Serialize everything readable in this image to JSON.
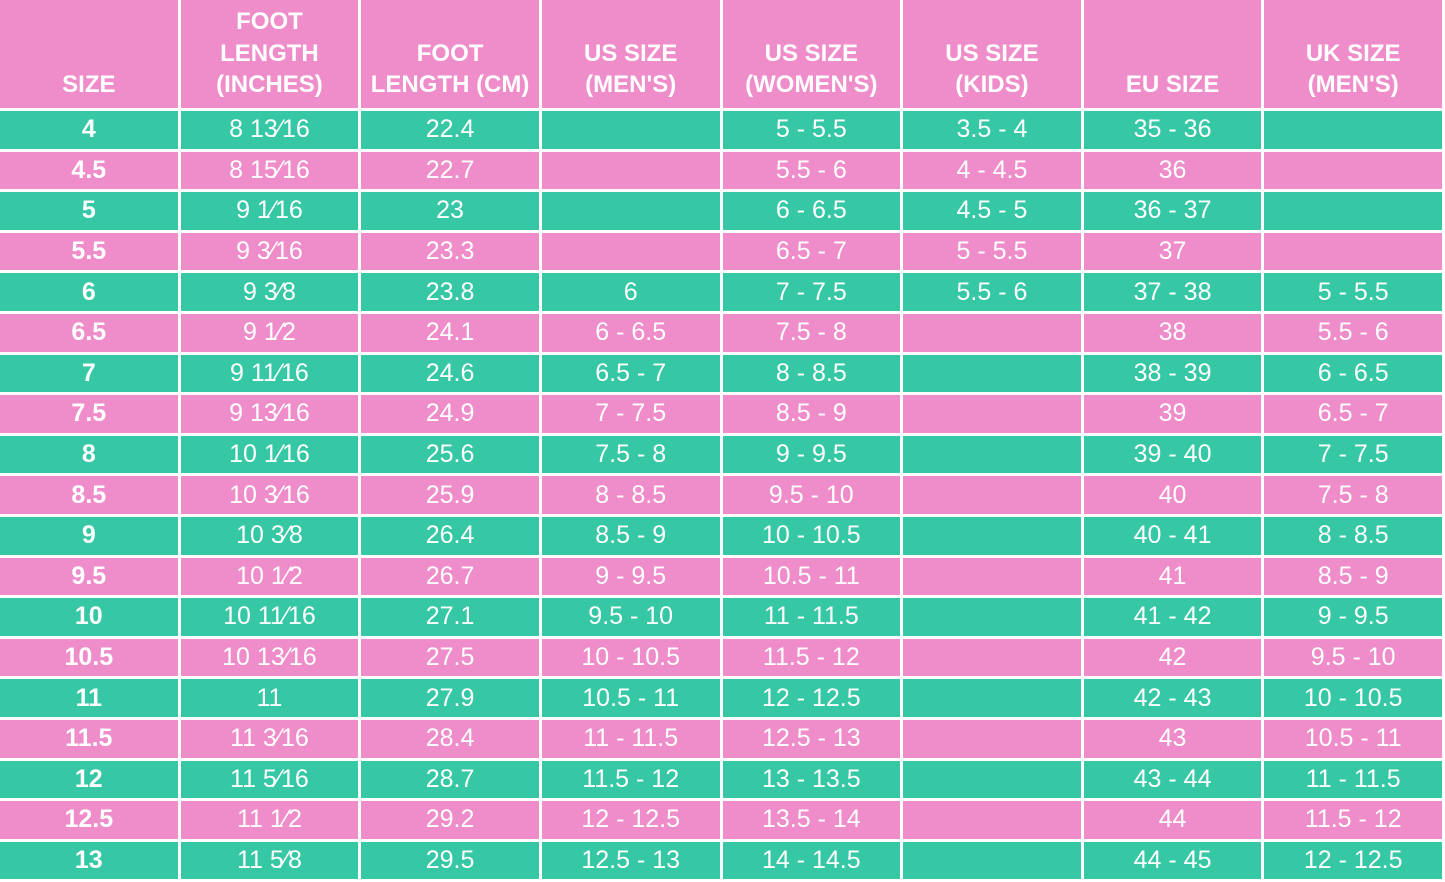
{
  "colors": {
    "teal_row": "#36C7A5",
    "pink_row": "#EE8DC9",
    "header_bg": "#EE8DC9",
    "gridline": "#FFFFFF",
    "page_background": "#F9E4F1",
    "text": "#FFFFFF"
  },
  "chart_data": {
    "type": "table",
    "title": "",
    "columns": [
      {
        "key": "size",
        "label": "SIZE"
      },
      {
        "key": "foot-length-inches",
        "label": "FOOT LENGTH (INCHES)"
      },
      {
        "key": "foot-length-cm",
        "label": "FOOT LENGTH (CM)"
      },
      {
        "key": "us-size-mens",
        "label": "US SIZE (MEN'S)"
      },
      {
        "key": "us-size-womens",
        "label": "US SIZE (WOMEN'S)"
      },
      {
        "key": "us-size-kids",
        "label": "US SIZE (KIDS)"
      },
      {
        "key": "eu-size",
        "label": "EU SIZE"
      },
      {
        "key": "uk-size-mens",
        "label": "UK SIZE (MEN'S)"
      }
    ],
    "rows": [
      [
        "4",
        "8 13⁄16",
        "22.4",
        "",
        "5 - 5.5",
        "3.5 - 4",
        "35 - 36",
        ""
      ],
      [
        "4.5",
        "8 15⁄16",
        "22.7",
        "",
        "5.5 - 6",
        "4 - 4.5",
        "36",
        ""
      ],
      [
        "5",
        "9 1⁄16",
        "23",
        "",
        "6 - 6.5",
        "4.5 - 5",
        "36 - 37",
        ""
      ],
      [
        "5.5",
        "9 3⁄16",
        "23.3",
        "",
        "6.5 - 7",
        "5 - 5.5",
        "37",
        ""
      ],
      [
        "6",
        "9 3⁄8",
        "23.8",
        "6",
        "7 - 7.5",
        "5.5 - 6",
        "37 - 38",
        "5 - 5.5"
      ],
      [
        "6.5",
        "9 1⁄2",
        "24.1",
        "6 - 6.5",
        "7.5 - 8",
        "",
        "38",
        "5.5 - 6"
      ],
      [
        "7",
        "9 11⁄16",
        "24.6",
        "6.5 - 7",
        "8 - 8.5",
        "",
        "38 - 39",
        "6 - 6.5"
      ],
      [
        "7.5",
        "9 13⁄16",
        "24.9",
        "7 - 7.5",
        "8.5 - 9",
        "",
        "39",
        "6.5 - 7"
      ],
      [
        "8",
        "10 1⁄16",
        "25.6",
        "7.5 - 8",
        "9 - 9.5",
        "",
        "39 - 40",
        "7 - 7.5"
      ],
      [
        "8.5",
        "10 3⁄16",
        "25.9",
        "8 - 8.5",
        "9.5 - 10",
        "",
        "40",
        "7.5 - 8"
      ],
      [
        "9",
        "10 3⁄8",
        "26.4",
        "8.5 - 9",
        "10 - 10.5",
        "",
        "40 - 41",
        "8 - 8.5"
      ],
      [
        "9.5",
        "10 1⁄2",
        "26.7",
        "9 - 9.5",
        "10.5 - 11",
        "",
        "41",
        "8.5 - 9"
      ],
      [
        "10",
        "10 11⁄16",
        "27.1",
        "9.5 - 10",
        "11 - 11.5",
        "",
        "41 - 42",
        "9 - 9.5"
      ],
      [
        "10.5",
        "10 13⁄16",
        "27.5",
        "10 - 10.5",
        "11.5 - 12",
        "",
        "42",
        "9.5 - 10"
      ],
      [
        "11",
        "11",
        "27.9",
        "10.5 - 11",
        "12 - 12.5",
        "",
        "42 - 43",
        "10 - 10.5"
      ],
      [
        "11.5",
        "11 3⁄16",
        "28.4",
        "11 - 11.5",
        "12.5 - 13",
        "",
        "43",
        "10.5 - 11"
      ],
      [
        "12",
        "11 5⁄16",
        "28.7",
        "11.5 - 12",
        "13 - 13.5",
        "",
        "43 - 44",
        "11 - 11.5"
      ],
      [
        "12.5",
        "11 1⁄2",
        "29.2",
        "12 - 12.5",
        "13.5 - 14",
        "",
        "44",
        "11.5 - 12"
      ],
      [
        "13",
        "11 5⁄8",
        "29.5",
        "12.5 - 13",
        "14 - 14.5",
        "",
        "44 - 45",
        "12 - 12.5"
      ]
    ],
    "layout": {
      "row_striping": [
        "teal",
        "pink"
      ],
      "gridlines": true,
      "header_alignment": "bottom-center",
      "cell_alignment": "middle-center"
    }
  }
}
